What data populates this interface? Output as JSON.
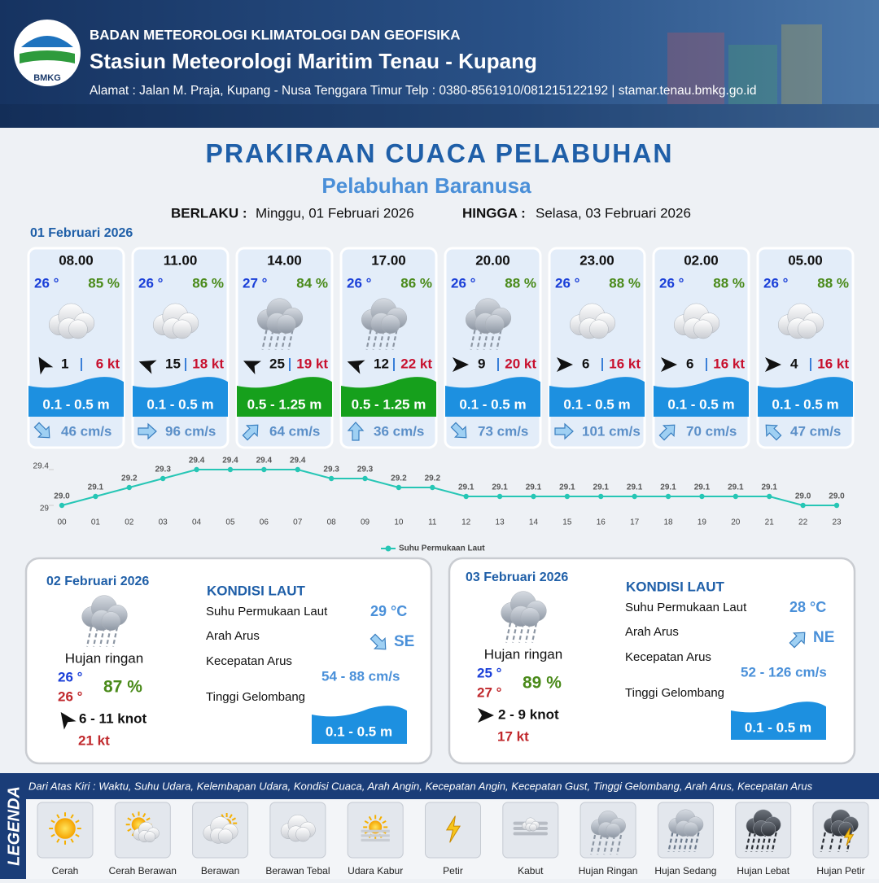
{
  "header": {
    "logo_text": "BMKG",
    "organization": "BADAN METEOROLOGI KLIMATOLOGI DAN GEOFISIKA",
    "station": "Stasiun Meteorologi Maritim Tenau - Kupang",
    "address": "Alamat : Jalan M. Praja, Kupang - Nusa Tenggara Timur Telp : 0380-8561910/081215122192  | stamar.tenau.bmkg.go.id"
  },
  "title": "PRAKIRAAN CUACA PELABUHAN",
  "subtitle": "Pelabuhan Baranusa",
  "validity": {
    "from_label": "BERLAKU :",
    "from": "Minggu, 01 Februari 2026",
    "to_label": "HINGGA :",
    "to": "Selasa, 03 Februari 2026"
  },
  "day1": {
    "date": "01 Februari 2026",
    "forecasts": [
      {
        "time": "08.00",
        "temp": "26 °",
        "humidity": "85 %",
        "wind": "1",
        "gust": "6 kt",
        "wave": "0.1 - 0.5 m",
        "current": "46 cm/s"
      },
      {
        "time": "11.00",
        "temp": "26 °",
        "humidity": "86 %",
        "wind": "15",
        "gust": "18 kt",
        "wave": "0.1 - 0.5 m",
        "current": "96 cm/s"
      },
      {
        "time": "14.00",
        "temp": "27 °",
        "humidity": "84 %",
        "wind": "25",
        "gust": "19 kt",
        "wave": "0.5 - 1.25 m",
        "current": "64 cm/s"
      },
      {
        "time": "17.00",
        "temp": "26 °",
        "humidity": "86 %",
        "wind": "12",
        "gust": "22 kt",
        "wave": "0.5 - 1.25 m",
        "current": "36 cm/s"
      },
      {
        "time": "20.00",
        "temp": "26 °",
        "humidity": "88 %",
        "wind": "9",
        "gust": "20 kt",
        "wave": "0.1 - 0.5 m",
        "current": "73 cm/s"
      },
      {
        "time": "23.00",
        "temp": "26 °",
        "humidity": "88 %",
        "wind": "6",
        "gust": "16 kt",
        "wave": "0.1 - 0.5 m",
        "current": "101 cm/s"
      },
      {
        "time": "02.00",
        "temp": "26 °",
        "humidity": "88 %",
        "wind": "6",
        "gust": "16 kt",
        "wave": "0.1 - 0.5 m",
        "current": "70 cm/s"
      },
      {
        "time": "05.00",
        "temp": "26 °",
        "humidity": "88 %",
        "wind": "4",
        "gust": "16 kt",
        "wave": "0.1 - 0.5 m",
        "current": "47 cm/s"
      }
    ]
  },
  "chart_data": {
    "type": "line",
    "categories": [
      "00",
      "01",
      "02",
      "03",
      "04",
      "05",
      "06",
      "07",
      "08",
      "09",
      "10",
      "11",
      "12",
      "13",
      "14",
      "15",
      "16",
      "17",
      "18",
      "19",
      "20",
      "21",
      "22",
      "23"
    ],
    "series": [
      {
        "name": "Suhu Permukaan Laut",
        "color": "#26c6b5",
        "values": [
          29.0,
          29.1,
          29.2,
          29.3,
          29.4,
          29.4,
          29.4,
          29.4,
          29.3,
          29.3,
          29.2,
          29.2,
          29.1,
          29.1,
          29.1,
          29.1,
          29.1,
          29.1,
          29.1,
          29.1,
          29.1,
          29.1,
          29.0,
          29.0
        ],
        "value_labels": [
          "29.0",
          "29.1",
          "29.2",
          "29.3",
          "29.4",
          "29.4",
          "29.4",
          "29.4",
          "29.3",
          "29.3",
          "29.2",
          "29.2",
          "29.1",
          "29.1",
          "29.1",
          "29.1",
          "29.1",
          "29.1",
          "29.1",
          "29.1",
          "29.1",
          "29.1",
          "29.0",
          "29.0"
        ]
      }
    ],
    "ylim": [
      29,
      29.4
    ],
    "yticks": [
      29,
      29.4
    ]
  },
  "days": [
    {
      "date": "02 Februari 2026",
      "condition": "Hujan ringan",
      "temp_min": "26 °",
      "temp_max": "26 °",
      "humidity": "87 %",
      "wind": "6  - 11 knot",
      "gust": "21 kt",
      "sea_title": "KONDISI LAUT",
      "sst_label": "Suhu Permukaan Laut",
      "sst": "29 °C",
      "dir_label": "Arah Arus",
      "dir": "SE",
      "speed_label": "Kecepatan Arus",
      "speed": "54 - 88 cm/s",
      "wave_label": "Tinggi Gelombang",
      "wave": "0.1 - 0.5 m"
    },
    {
      "date": "03 Februari 2026",
      "condition": "Hujan ringan",
      "temp_min": "25 °",
      "temp_max": "27 °",
      "humidity": "89 %",
      "wind": "2  - 9 knot",
      "gust": "17 kt",
      "sea_title": "KONDISI LAUT",
      "sst_label": "Suhu Permukaan Laut",
      "sst": "28 °C",
      "dir_label": "Arah Arus",
      "dir": "NE",
      "speed_label": "Kecepatan Arus",
      "speed": "52 - 126 cm/s",
      "wave_label": "Tinggi Gelombang",
      "wave": "0.1 - 0.5 m"
    }
  ],
  "legend": {
    "title": "LEGENDA",
    "description": "Dari Atas Kiri : Waktu, Suhu Udara, Kelembapan Udara, Kondisi Cuaca, Arah Angin, Kecepatan Angin, Kecepatan Gust, Tinggi Gelombang, Arah Arus, Kecepatan Arus",
    "items": [
      "Cerah",
      "Cerah Berawan",
      "Berawan",
      "Berawan Tebal",
      "Udara Kabur",
      "Petir",
      "Kabut",
      "Hujan Ringan",
      "Hujan Sedang",
      "Hujan Lebat",
      "Hujan Petir"
    ]
  }
}
